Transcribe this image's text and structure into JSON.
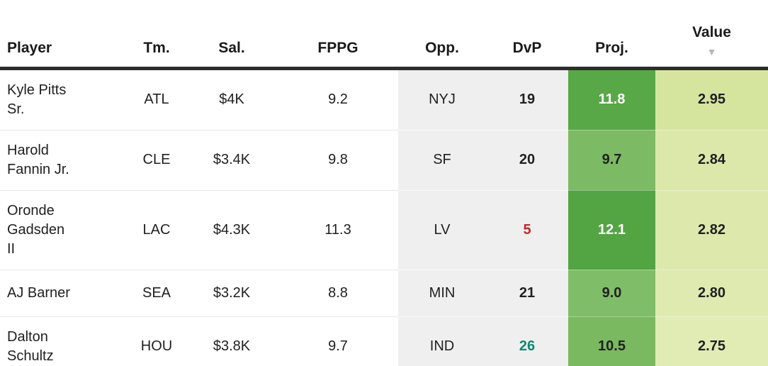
{
  "table": {
    "columns": [
      {
        "id": "player",
        "label": "Player"
      },
      {
        "id": "tm",
        "label": "Tm."
      },
      {
        "id": "sal",
        "label": "Sal."
      },
      {
        "id": "fppg",
        "label": "FPPG"
      },
      {
        "id": "opp",
        "label": "Opp."
      },
      {
        "id": "dvp",
        "label": "DvP"
      },
      {
        "id": "proj",
        "label": "Proj."
      },
      {
        "id": "value",
        "label": "Value"
      }
    ],
    "sort": {
      "column": "Value",
      "direction": "desc",
      "indicator": "down-triangle"
    },
    "rows": [
      {
        "player": "Kyle Pitts Sr.",
        "tm": "ATL",
        "sal": "$4K",
        "fppg": "9.2",
        "opp": "NYJ",
        "dvp": "19",
        "dvp_color": "#212121",
        "proj": "11.8",
        "proj_bg": "#58a847",
        "proj_text": "#ffffff",
        "value": "2.95",
        "value_bg": "#d6e59e"
      },
      {
        "player": "Harold Fannin Jr.",
        "tm": "CLE",
        "sal": "$3.4K",
        "fppg": "9.8",
        "opp": "SF",
        "dvp": "20",
        "dvp_color": "#212121",
        "proj": "9.7",
        "proj_bg": "#7cba64",
        "proj_text": "#212121",
        "value": "2.84",
        "value_bg": "#dce8a9"
      },
      {
        "player": "Oronde Gadsden II",
        "tm": "LAC",
        "sal": "$4.3K",
        "fppg": "11.3",
        "opp": "LV",
        "dvp": "5",
        "dvp_color": "#c62828",
        "proj": "12.1",
        "proj_bg": "#53a443",
        "proj_text": "#ffffff",
        "value": "2.82",
        "value_bg": "#dde9ac"
      },
      {
        "player": "AJ Barner",
        "tm": "SEA",
        "sal": "$3.2K",
        "fppg": "8.8",
        "opp": "MIN",
        "dvp": "21",
        "dvp_color": "#212121",
        "proj": "9.0",
        "proj_bg": "#80bd68",
        "proj_text": "#212121",
        "value": "2.80",
        "value_bg": "#dfeab0"
      },
      {
        "player": "Dalton Schultz",
        "tm": "HOU",
        "sal": "$3.8K",
        "fppg": "9.7",
        "opp": "IND",
        "dvp": "26",
        "dvp_color": "#0d8a71",
        "proj": "10.5",
        "proj_bg": "#7bb961",
        "proj_text": "#212121",
        "value": "2.75",
        "value_bg": "#e1ecb5"
      }
    ]
  },
  "colors": {
    "header_text": "#1a1a1a",
    "header_border": "#2d2d2d",
    "body_text": "#1f1f1f",
    "muted_column_bg": "#efeff0",
    "sort_arrow": "#b6b6b6"
  },
  "icons": {
    "sort_desc": "▼"
  }
}
